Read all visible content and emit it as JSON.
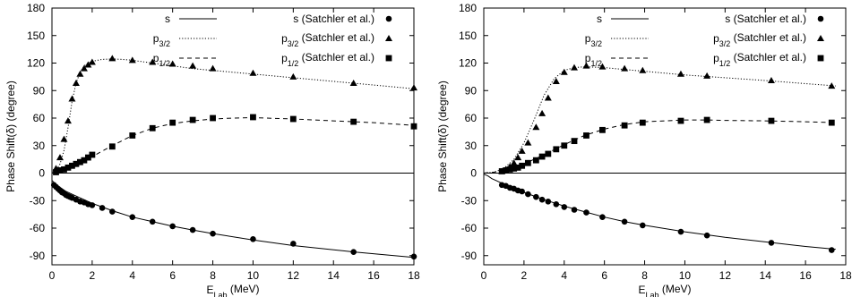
{
  "chart_data": [
    {
      "type": "line",
      "xlabel_main": "E",
      "xlabel_sub": "Lab",
      "xlabel_unit": " (MeV)",
      "ylabel": "Phase Shift(δ) (degree)",
      "xlim": [
        0,
        18
      ],
      "ylim": [
        -100,
        180
      ],
      "xticks": [
        0,
        2,
        4,
        6,
        8,
        10,
        12,
        14,
        16,
        18
      ],
      "yticks": [
        -90,
        -60,
        -30,
        0,
        30,
        60,
        90,
        120,
        150,
        180
      ],
      "zero_line": true,
      "grid": false,
      "legend_position": "top",
      "series": [
        {
          "name": "s",
          "name_main": "s",
          "name_sub": "",
          "kind": "curve",
          "style": "solid",
          "x": [
            0,
            0.05,
            0.1,
            0.2,
            0.3,
            0.5,
            0.7,
            1,
            1.5,
            2,
            2.5,
            3,
            4,
            5,
            6,
            7,
            8,
            10,
            12,
            15,
            18
          ],
          "values": [
            -8,
            -9,
            -10,
            -12,
            -14,
            -17,
            -20,
            -23,
            -28,
            -33,
            -37,
            -41,
            -48,
            -53,
            -58,
            -62,
            -66,
            -73,
            -79,
            -86,
            -92
          ]
        },
        {
          "name": "p3/2",
          "name_main": "p",
          "name_sub": "3/2",
          "kind": "curve",
          "style": "dotted",
          "x": [
            0,
            0.2,
            0.4,
            0.6,
            0.8,
            1,
            1.2,
            1.4,
            1.6,
            1.8,
            2,
            2.5,
            3,
            3.5,
            4,
            5,
            6,
            7,
            8,
            10,
            12,
            15,
            18
          ],
          "values": [
            0,
            3,
            10,
            25,
            50,
            78,
            98,
            110,
            117,
            120,
            122,
            124,
            124.5,
            124,
            123,
            120,
            117,
            114,
            112,
            108,
            104,
            98,
            92
          ]
        },
        {
          "name": "p1/2",
          "name_main": "p",
          "name_sub": "1/2",
          "kind": "curve",
          "style": "dashed",
          "x": [
            0,
            0.3,
            0.6,
            1,
            1.5,
            2,
            2.5,
            3,
            4,
            5,
            6,
            7,
            8,
            9,
            10,
            12,
            14,
            16,
            18
          ],
          "values": [
            0,
            2,
            4,
            7,
            12,
            18,
            24,
            30,
            41,
            49,
            54,
            57,
            59,
            60,
            60.5,
            59,
            57,
            55,
            52
          ]
        },
        {
          "name": "s (Satchler et al.)",
          "name_main": "s (Satchler et al.)",
          "name_sub": "",
          "name_tail": "",
          "kind": "points",
          "marker": "circle",
          "x": [
            0.1,
            0.2,
            0.3,
            0.4,
            0.5,
            0.6,
            0.7,
            0.8,
            0.9,
            1.0,
            1.2,
            1.4,
            1.6,
            1.8,
            2.0,
            2.5,
            3,
            4,
            5,
            6,
            7,
            8,
            10,
            12,
            15,
            18
          ],
          "values": [
            -13,
            -15,
            -17,
            -19,
            -21,
            -22,
            -24,
            -25,
            -26,
            -27,
            -29,
            -31,
            -32,
            -34,
            -35,
            -38,
            -42,
            -48,
            -53,
            -58,
            -62,
            -66,
            -72,
            -77,
            -86,
            -91
          ]
        },
        {
          "name": "p3/2 (Satchler et al.)",
          "name_main": "p",
          "name_sub": "3/2",
          "name_tail": " (Satchler et al.)",
          "kind": "points",
          "marker": "triangle",
          "x": [
            0.2,
            0.4,
            0.6,
            0.8,
            1.0,
            1.2,
            1.4,
            1.6,
            1.8,
            2.0,
            3,
            4,
            5,
            6,
            7,
            8,
            10,
            12,
            15,
            18
          ],
          "values": [
            5,
            17,
            37,
            57,
            81,
            98,
            108,
            114,
            118,
            121,
            125,
            123,
            121,
            119,
            117,
            114,
            109,
            105,
            98,
            93
          ]
        },
        {
          "name": "p1/2 (Satchler et al.)",
          "name_main": "p",
          "name_sub": "1/2",
          "name_tail": " (Satchler et al.)",
          "kind": "points",
          "marker": "square",
          "x": [
            0.2,
            0.4,
            0.6,
            0.8,
            1.0,
            1.2,
            1.4,
            1.6,
            1.8,
            2.0,
            3,
            4,
            5,
            6,
            7,
            8,
            10,
            12,
            15,
            18
          ],
          "values": [
            1,
            3,
            4,
            6,
            8,
            10,
            12,
            14,
            17,
            20,
            29,
            41,
            49,
            55,
            58,
            60,
            61,
            59,
            56,
            51
          ]
        }
      ]
    },
    {
      "type": "line",
      "xlabel_main": "E",
      "xlabel_sub": "Lab",
      "xlabel_unit": " (MeV)",
      "ylabel": "Phase Shift(δ) (degree)",
      "xlim": [
        0,
        18
      ],
      "ylim": [
        -100,
        180
      ],
      "xticks": [
        0,
        2,
        4,
        6,
        8,
        10,
        12,
        14,
        16,
        18
      ],
      "yticks": [
        -90,
        -60,
        -30,
        0,
        30,
        60,
        90,
        120,
        150,
        180
      ],
      "zero_line": true,
      "grid": false,
      "legend_position": "top",
      "series": [
        {
          "name": "s",
          "name_main": "s",
          "name_sub": "",
          "kind": "curve",
          "style": "solid",
          "x": [
            0,
            0.1,
            0.2,
            0.4,
            0.6,
            0.8,
            1,
            1.5,
            2,
            2.5,
            3,
            4,
            5,
            6,
            7,
            8,
            10,
            12,
            14,
            16,
            17.5
          ],
          "values": [
            -1,
            -2,
            -3,
            -6,
            -8,
            -10,
            -12,
            -17,
            -21,
            -25,
            -29,
            -36,
            -42,
            -48,
            -53,
            -57,
            -64,
            -70,
            -75,
            -80,
            -83
          ]
        },
        {
          "name": "p3/2",
          "name_main": "p",
          "name_sub": "3/2",
          "kind": "curve",
          "style": "dotted",
          "x": [
            0,
            0.5,
            1,
            1.5,
            2,
            2.5,
            3,
            3.5,
            4,
            4.5,
            5,
            6,
            7,
            8,
            10,
            12,
            14,
            17.5
          ],
          "values": [
            0,
            1,
            5,
            15,
            33,
            58,
            85,
            103,
            112,
            115,
            116,
            115,
            113,
            111,
            107,
            104,
            101,
            95
          ]
        },
        {
          "name": "p1/2",
          "name_main": "p",
          "name_sub": "1/2",
          "kind": "curve",
          "style": "dashed",
          "x": [
            0,
            0.5,
            1,
            1.5,
            2,
            2.5,
            3,
            4,
            5,
            6,
            7,
            8,
            9,
            10,
            11,
            12,
            14,
            16,
            17.5
          ],
          "values": [
            0,
            1,
            3,
            6,
            10,
            15,
            20,
            31,
            41,
            48,
            53,
            56,
            57,
            58,
            58,
            57.5,
            57,
            56,
            55
          ]
        },
        {
          "name": "s (Satchler et al.)",
          "name_main": "s (Satchler et al.)",
          "name_sub": "",
          "name_tail": "",
          "kind": "points",
          "marker": "circle",
          "x": [
            0.9,
            1.1,
            1.3,
            1.5,
            1.7,
            1.9,
            2.2,
            2.6,
            2.9,
            3.2,
            3.6,
            4.0,
            4.5,
            5.1,
            5.9,
            7.0,
            7.9,
            9.8,
            11.1,
            14.3,
            17.3
          ],
          "values": [
            -13,
            -14,
            -16,
            -17,
            -19,
            -20,
            -23,
            -26,
            -29,
            -31,
            -34,
            -37,
            -40,
            -43,
            -48,
            -53,
            -57,
            -64,
            -68,
            -76,
            -84
          ]
        },
        {
          "name": "p3/2 (Satchler et al.)",
          "name_main": "p",
          "name_sub": "3/2",
          "name_tail": " (Satchler et al.)",
          "kind": "points",
          "marker": "triangle",
          "x": [
            0.9,
            1.1,
            1.3,
            1.5,
            1.7,
            1.9,
            2.2,
            2.6,
            2.9,
            3.2,
            3.6,
            4.0,
            4.5,
            5.1,
            5.9,
            7.0,
            7.9,
            9.8,
            11.1,
            14.3,
            17.3
          ],
          "values": [
            2,
            4,
            7,
            11,
            17,
            24,
            33,
            50,
            65,
            82,
            100,
            110,
            115,
            117,
            116,
            114,
            112,
            108,
            106,
            101,
            95
          ]
        },
        {
          "name": "p1/2 (Satchler et al.)",
          "name_main": "p",
          "name_sub": "1/2",
          "name_tail": " (Satchler et al.)",
          "kind": "points",
          "marker": "square",
          "x": [
            0.9,
            1.1,
            1.3,
            1.5,
            1.7,
            1.9,
            2.2,
            2.6,
            2.9,
            3.2,
            3.6,
            4.0,
            4.5,
            5.1,
            5.9,
            7.0,
            7.9,
            9.8,
            11.1,
            14.3,
            17.3
          ],
          "values": [
            2,
            3,
            4,
            5,
            6,
            8,
            11,
            14,
            18,
            21,
            26,
            30,
            35,
            41,
            47,
            52,
            55,
            57,
            58,
            57,
            55
          ]
        }
      ]
    }
  ]
}
